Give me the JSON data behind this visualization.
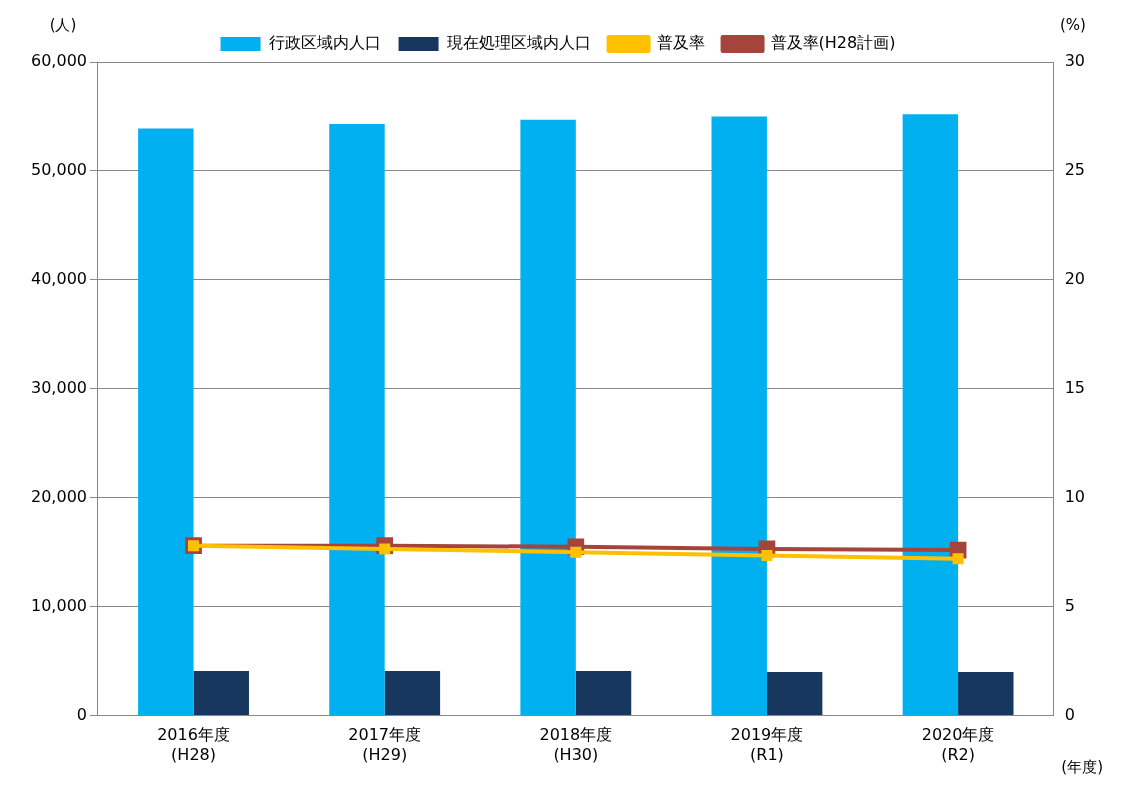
{
  "chart_data": {
    "type": "bar",
    "categories": [
      "2016年度\n(H28)",
      "2017年度\n(H29)",
      "2018年度\n(H30)",
      "2019年度\n(R1)",
      "2020年度\n(R2)"
    ],
    "series": [
      {
        "name": "行政区域内人口",
        "color": "#00b0f0",
        "values": [
          53900,
          54300,
          54700,
          55000,
          55200
        ]
      },
      {
        "name": "現在処理区域内人口",
        "color": "#17375e",
        "values": [
          4100,
          4100,
          4100,
          4000,
          4000
        ]
      },
      {
        "name": "普及率",
        "type": "line",
        "axis": "y2",
        "color": "#ffc000",
        "marker": "square",
        "values": [
          7.8,
          7.65,
          7.5,
          7.35,
          7.2
        ]
      },
      {
        "name": "普及率(H28計画)",
        "type": "line",
        "axis": "y2",
        "color": "#a5443b",
        "marker": "square",
        "values": [
          7.8,
          7.8,
          7.75,
          7.65,
          7.6
        ]
      }
    ],
    "ylabel": "(人)",
    "y2label": "(%)",
    "xlabel": "(年度)",
    "ylim": [
      0,
      60000
    ],
    "yticks": [
      0,
      {
        "value": 10000,
        "label": "10,000"
      },
      {
        "value": 20000,
        "label": "20,000"
      },
      {
        "value": 30000,
        "label": "30,000"
      },
      {
        "value": 40000,
        "label": "40,000"
      },
      {
        "value": 50000,
        "label": "50,000"
      },
      {
        "value": 60000,
        "label": "60,000"
      }
    ],
    "y2lim": [
      0,
      30
    ],
    "y2ticks": [
      0,
      5,
      10,
      15,
      20,
      25,
      30
    ],
    "grid": "y",
    "legend": "top"
  }
}
